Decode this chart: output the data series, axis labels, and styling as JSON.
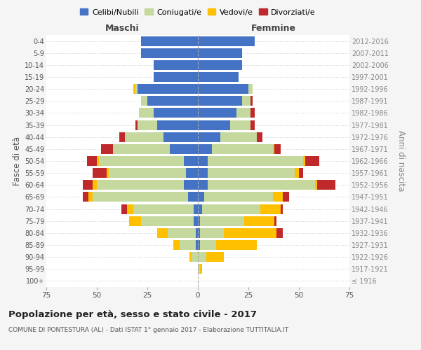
{
  "age_groups": [
    "100+",
    "95-99",
    "90-94",
    "85-89",
    "80-84",
    "75-79",
    "70-74",
    "65-69",
    "60-64",
    "55-59",
    "50-54",
    "45-49",
    "40-44",
    "35-39",
    "30-34",
    "25-29",
    "20-24",
    "15-19",
    "10-14",
    "5-9",
    "0-4"
  ],
  "birth_years": [
    "≤ 1916",
    "1917-1921",
    "1922-1926",
    "1927-1931",
    "1932-1936",
    "1937-1941",
    "1942-1946",
    "1947-1951",
    "1952-1956",
    "1957-1961",
    "1962-1966",
    "1967-1971",
    "1972-1976",
    "1977-1981",
    "1982-1986",
    "1987-1991",
    "1992-1996",
    "1997-2001",
    "2002-2006",
    "2007-2011",
    "2012-2016"
  ],
  "male": {
    "celibi": [
      0,
      0,
      0,
      1,
      1,
      2,
      2,
      5,
      7,
      6,
      7,
      14,
      17,
      20,
      22,
      25,
      30,
      22,
      22,
      28,
      28
    ],
    "coniugati": [
      0,
      0,
      3,
      8,
      14,
      26,
      30,
      47,
      43,
      38,
      42,
      28,
      19,
      10,
      7,
      3,
      1,
      0,
      0,
      0,
      0
    ],
    "vedovi": [
      0,
      0,
      1,
      3,
      5,
      6,
      3,
      2,
      2,
      1,
      1,
      0,
      0,
      0,
      0,
      0,
      1,
      0,
      0,
      0,
      0
    ],
    "divorziati": [
      0,
      0,
      0,
      0,
      0,
      0,
      3,
      3,
      5,
      7,
      5,
      6,
      3,
      1,
      0,
      0,
      0,
      0,
      0,
      0,
      0
    ]
  },
  "female": {
    "nubili": [
      0,
      0,
      0,
      1,
      1,
      1,
      2,
      3,
      5,
      5,
      5,
      7,
      11,
      16,
      19,
      22,
      25,
      20,
      22,
      22,
      28
    ],
    "coniugate": [
      0,
      1,
      4,
      8,
      12,
      22,
      29,
      34,
      53,
      43,
      47,
      30,
      18,
      10,
      7,
      4,
      2,
      0,
      0,
      0,
      0
    ],
    "vedove": [
      0,
      1,
      9,
      20,
      26,
      15,
      10,
      5,
      1,
      2,
      1,
      1,
      0,
      0,
      0,
      0,
      0,
      0,
      0,
      0,
      0
    ],
    "divorziate": [
      0,
      0,
      0,
      0,
      3,
      1,
      1,
      3,
      9,
      2,
      7,
      3,
      3,
      2,
      2,
      1,
      0,
      0,
      0,
      0,
      0
    ]
  },
  "colors": {
    "celibi": "#4472c4",
    "coniugati": "#c5d89d",
    "vedovi": "#ffc000",
    "divorziati": "#c0292b"
  },
  "xlim": 75,
  "title": "Popolazione per età, sesso e stato civile - 2017",
  "subtitle": "COMUNE DI PONTESTURA (AL) - Dati ISTAT 1° gennaio 2017 - Elaborazione TUTTITALIA.IT",
  "ylabel_left": "Fasce di età",
  "ylabel_right": "Anni di nascita",
  "xlabel_left": "Maschi",
  "xlabel_right": "Femmine",
  "bg_color": "#f5f5f5",
  "plot_bg_color": "#ffffff"
}
